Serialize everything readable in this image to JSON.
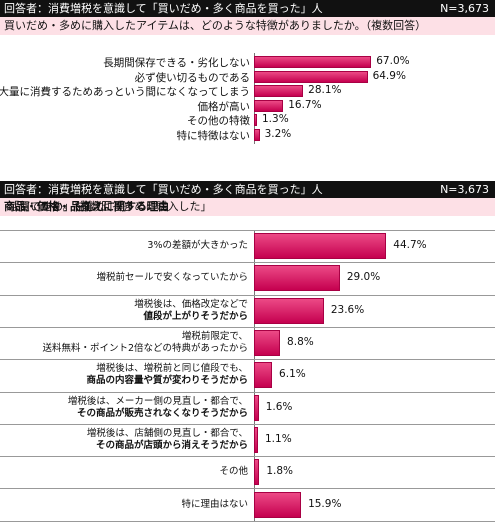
{
  "chart1": {
    "respondent": "回答者：消費増税を意識して「買いだめ・多く商品を買った」人",
    "n": "N=3,673",
    "question": "買いだめ・多めに購入したアイテムは、どのような特徴がありましたか。（複数回答）",
    "chart_data": {
      "type": "bar",
      "orientation": "horizontal",
      "categories": [
        "長期間保存できる・劣化しない",
        "必ず使い切るものである",
        "大量に消費するためあっという間になくなってしまう",
        "価格が高い",
        "その他の特徴",
        "特に特徴はない"
      ],
      "values": [
        67.0,
        64.9,
        28.1,
        16.7,
        1.3,
        3.2
      ],
      "value_labels": [
        "67.0%",
        "64.9%",
        "28.1%",
        "16.7%",
        "1.3%",
        "3.2%"
      ],
      "xlim": [
        0,
        100
      ]
    }
  },
  "chart2": {
    "respondent": "回答者：消費増税を意識して「買いだめ・多く商品を買った」人",
    "n": "N=3,673",
    "question_parts": [
      "「買いだめ」をした、「多めに購入した」",
      "商品・価格・品揃えに関する理由",
      "は何ですか。（複数回答）"
    ],
    "chart_data": {
      "type": "bar",
      "orientation": "horizontal",
      "categories": [
        [
          "3%の差額が大きかった"
        ],
        [
          "増税前セールで安くなっていたから"
        ],
        [
          "増税後は、価格改定などで",
          "値段が上がりそうだから"
        ],
        [
          "増税前限定で、",
          "送料無料・ポイント2倍などの特典があったから"
        ],
        [
          "増税後は、増税前と同じ値段でも、",
          "商品の内容量や質が変わりそうだから"
        ],
        [
          "増税後は、メーカー側の見直し・都合で、",
          "その商品が販売されなくなりそうだから"
        ],
        [
          "増税後は、店舗側の見直し・都合で、",
          "その商品が店頭から消えそうだから"
        ],
        [
          "その他"
        ],
        [
          "特に理由はない"
        ]
      ],
      "bold_parts": [
        [
          false
        ],
        [
          false
        ],
        [
          false,
          true
        ],
        [
          false,
          false
        ],
        [
          false,
          true
        ],
        [
          false,
          true
        ],
        [
          false,
          true
        ],
        [
          false
        ],
        [
          false
        ]
      ],
      "values": [
        44.7,
        29.0,
        23.6,
        8.8,
        6.1,
        1.6,
        1.1,
        1.8,
        15.9
      ],
      "value_labels": [
        "44.7%",
        "29.0%",
        "23.6%",
        "8.8%",
        "6.1%",
        "1.6%",
        "1.1%",
        "1.8%",
        "15.9%"
      ],
      "xlim": [
        0,
        100
      ]
    }
  }
}
